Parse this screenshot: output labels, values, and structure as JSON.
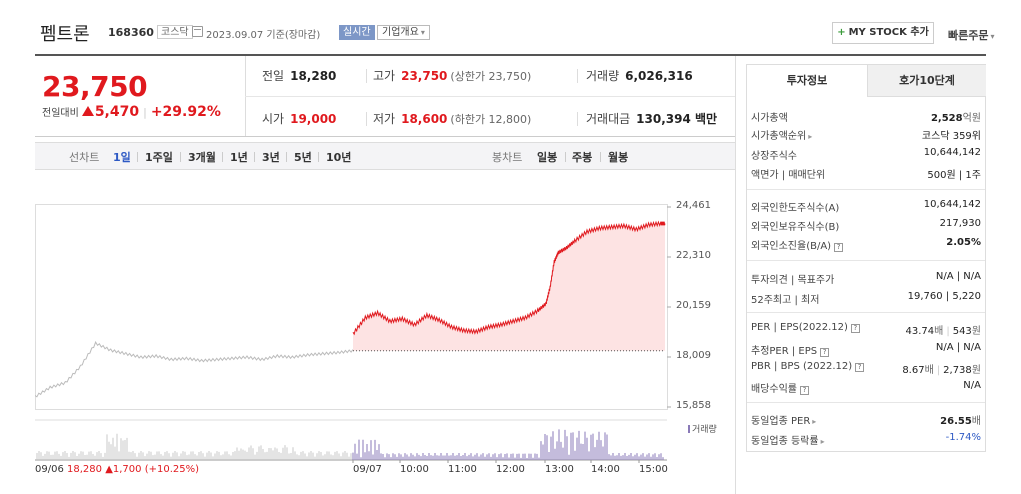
{
  "header": {
    "name": "펨트론",
    "code": "168360",
    "market": "코스닥",
    "date": "2023.09.07 기준(장마감)",
    "realtime": "실시간",
    "overview": "기업개요",
    "mystock": "MY STOCK 추가",
    "quick_order": "빠른주문"
  },
  "price": {
    "current": "23,750",
    "change_label": "전일대비",
    "change": "5,470",
    "change_pct": "+29.92%",
    "direction_color": "#e0191e"
  },
  "quote": {
    "prev_label": "전일",
    "prev": "18,280",
    "high_label": "고가",
    "high": "23,750",
    "upper_limit": "(상한가 23,750)",
    "volume_label": "거래량",
    "volume": "6,026,316",
    "open_label": "시가",
    "open": "19,000",
    "low_label": "저가",
    "low": "18,600",
    "lower_limit": "(하한가 12,800)",
    "value_label": "거래대금",
    "value": "130,394 백만"
  },
  "tabs": {
    "line_label": "선차트",
    "line_items": [
      "1일",
      "1주일",
      "3개월",
      "1년",
      "3년",
      "5년",
      "10년"
    ],
    "selected": "1일",
    "candle_label": "봉차트",
    "candle_items": [
      "일봉",
      "주봉",
      "월봉"
    ]
  },
  "chart_data": {
    "type": "line",
    "y_ticks": [
      "24,461",
      "22,310",
      "20,159",
      "18,009",
      "15,858"
    ],
    "ylim": [
      15858,
      24461
    ],
    "prev_close": 18280,
    "prev_day_label": "09/06",
    "prev_day_close": "18,280",
    "prev_day_change": "▲1,700 (+10.25%)",
    "x_ticks": [
      "09/07",
      "10:00",
      "11:00",
      "12:00",
      "13:00",
      "14:00",
      "15:00"
    ],
    "volume_label": "거래량",
    "series": [
      {
        "x": [
          "09:00",
          "09:15",
          "09:30",
          "09:45",
          "10:00",
          "10:15",
          "10:30",
          "10:45",
          "11:00",
          "11:15",
          "11:30",
          "11:45",
          "12:00",
          "12:15",
          "12:30",
          "12:45",
          "12:55",
          "13:00",
          "13:05",
          "13:10",
          "13:20",
          "13:30",
          "13:45",
          "14:00",
          "14:15",
          "14:30",
          "14:45",
          "15:00",
          "15:15",
          "15:20"
        ],
        "values": [
          19000,
          19700,
          19900,
          19550,
          19650,
          19400,
          19800,
          19600,
          19300,
          19150,
          19100,
          19300,
          19400,
          19550,
          19700,
          20000,
          20300,
          21000,
          22100,
          22500,
          22700,
          23000,
          23400,
          23550,
          23600,
          23650,
          23500,
          23700,
          23750,
          23750
        ]
      }
    ],
    "prev_day_series": {
      "values": [
        16300,
        16700,
        16900,
        17600,
        18600,
        18300,
        18150,
        18000,
        18050,
        17900,
        17950,
        17850,
        17900,
        17950,
        18000,
        17900,
        18050,
        18000,
        18100,
        18150,
        18200,
        18280
      ]
    }
  },
  "panel": {
    "tab_active": "투자정보",
    "tab_other": "호가10단계",
    "group1": [
      {
        "label": "시가총액",
        "value": "2,528",
        "unit": "억원"
      },
      {
        "label": "시가총액순위",
        "value": "코스닥 359위"
      },
      {
        "label": "상장주식수",
        "value": "10,644,142"
      },
      {
        "label": "액면가 | 매매단위",
        "value": "500원 | 1주"
      }
    ],
    "group2": [
      {
        "label": "외국인한도주식수(A)",
        "value": "10,644,142"
      },
      {
        "label": "외국인보유주식수(B)",
        "value": "217,930"
      },
      {
        "label": "외국인소진율(B/A)",
        "value": "2.05%"
      }
    ],
    "group3": [
      {
        "label": "투자의견 | 목표주가",
        "value": "N/A | N/A"
      },
      {
        "label": "52주최고 | 최저",
        "value": "19,760 | 5,220"
      }
    ],
    "group4": [
      {
        "label": "PER | EPS(2022.12)",
        "value1": "43.74",
        "unit1": "배",
        "value2": "543",
        "unit2": "원"
      },
      {
        "label": "추정PER | EPS",
        "value": "N/A | N/A"
      },
      {
        "label": "PBR | BPS (2022.12)",
        "value1": "8.67",
        "unit1": "배",
        "value2": "2,738",
        "unit2": "원"
      },
      {
        "label": "배당수익률",
        "value": "N/A"
      }
    ],
    "group5": [
      {
        "label": "동일업종 PER",
        "value": "26.55",
        "unit": "배"
      },
      {
        "label": "동일업종 등락률",
        "value": "-1.74%"
      }
    ]
  }
}
